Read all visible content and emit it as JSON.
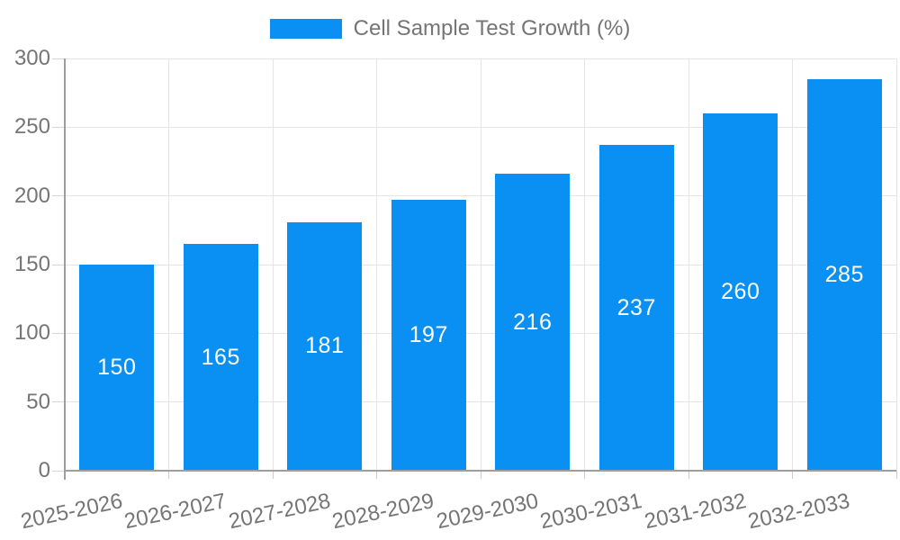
{
  "chart_data": {
    "type": "bar",
    "title": "Cell Sample Test Growth (%)",
    "legend": {
      "label": "Cell Sample Test Growth (%)",
      "position": "top",
      "color": "#0A90F2"
    },
    "categories": [
      "2025-2026",
      "2026-2027",
      "2027-2028",
      "2028-2029",
      "2029-2030",
      "2030-2031",
      "2031-2032",
      "2032-2033"
    ],
    "values": [
      150,
      165,
      181,
      197,
      216,
      237,
      260,
      285
    ],
    "xlabel": "",
    "ylabel": "",
    "ylim": [
      0,
      300
    ],
    "yticks": [
      0,
      50,
      100,
      150,
      200,
      250,
      300
    ],
    "grid": true,
    "bar_color": "#0A90F2",
    "value_label_color": "#ffffff",
    "axis_text_color": "#757575",
    "grid_color": "#e5e5e5",
    "axis_line_color": "#9e9e9e"
  }
}
